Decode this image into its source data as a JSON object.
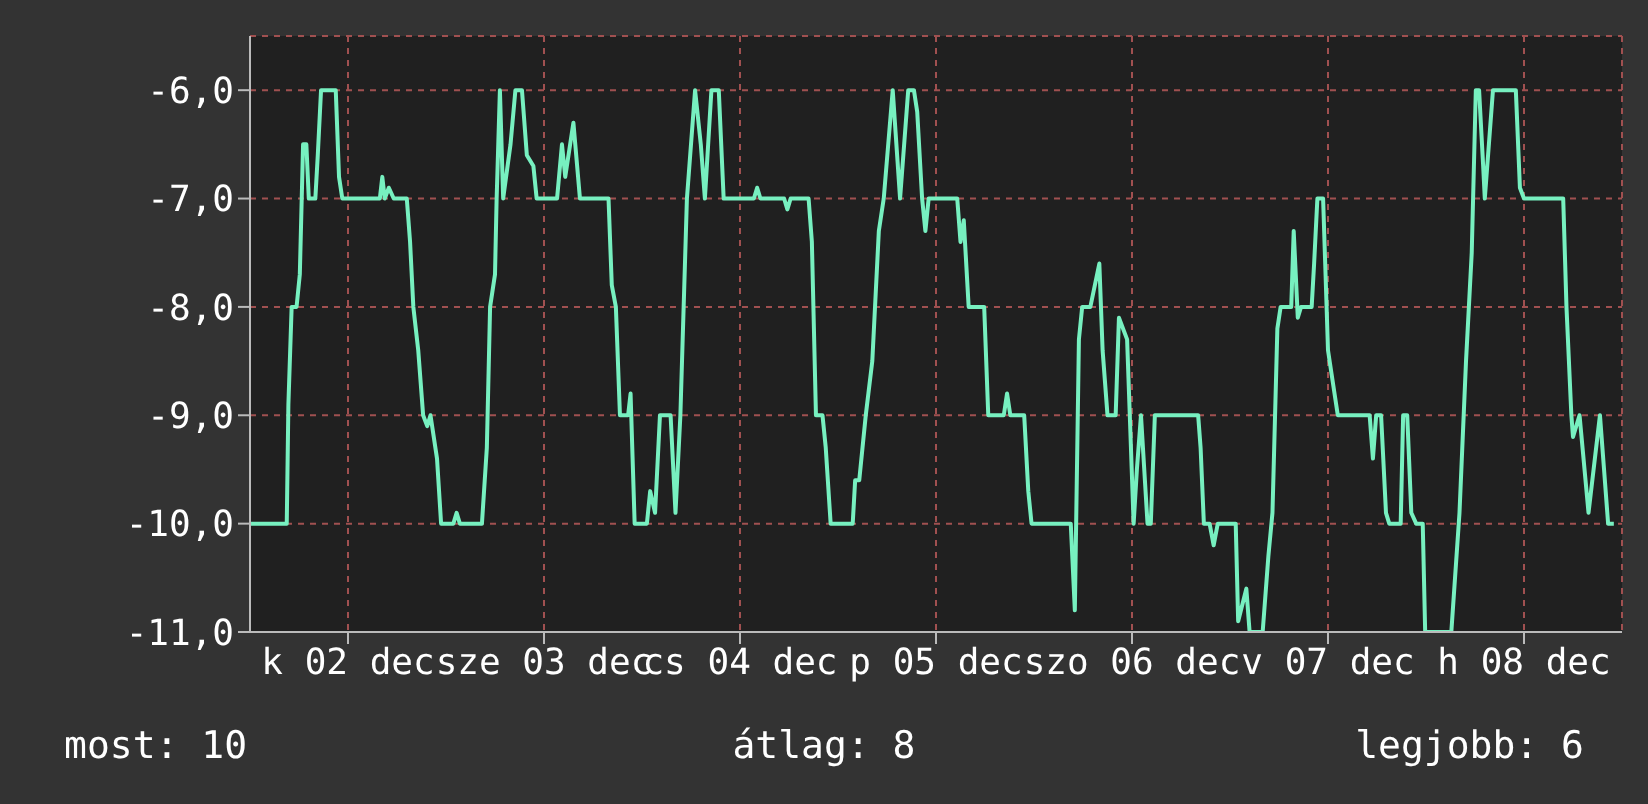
{
  "chart_data": {
    "type": "line",
    "xlim": [
      "--12-02",
      "--12-09"
    ],
    "xticks": [
      {
        "value": "--12-02T12:00",
        "label": "k 02 dec"
      },
      {
        "value": "--12-03T12:00",
        "label": "sze 03 dec"
      },
      {
        "value": "--12-04T12:00",
        "label": "cs 04 dec"
      },
      {
        "value": "--12-05T12:00",
        "label": "p 05 dec"
      },
      {
        "value": "--12-06T12:00",
        "label": "szo 06 dec"
      },
      {
        "value": "--12-07T12:00",
        "label": "v 07 dec"
      },
      {
        "value": "--12-08T12:00",
        "label": "h 08 dec"
      }
    ],
    "ylim": [
      -11,
      -5.5
    ],
    "yticks": [
      {
        "value": -11,
        "label": "-11,0"
      },
      {
        "value": -10,
        "label": "-10,0"
      },
      {
        "value": -9,
        "label": "-9,0"
      },
      {
        "value": -8,
        "label": "-8,0"
      },
      {
        "value": -7,
        "label": "-7,0"
      },
      {
        "value": -6,
        "label": "-6,0"
      }
    ],
    "grid": true,
    "marker": "none",
    "line_style": "solid",
    "annotations": [
      "most: 10",
      "átlag: 8",
      "legjobb: 6"
    ],
    "series": [
      {
        "color": "#77f0c0",
        "x": [
          "--12-02T00:00",
          "--12-02T04:30",
          "--12-02T04:42",
          "--12-02T05:06",
          "--12-02T05:42",
          "--12-02T06:06",
          "--12-02T06:30",
          "--12-02T06:54",
          "--12-02T07:12",
          "--12-02T08:00",
          "--12-02T08:18",
          "--12-02T08:42",
          "--12-02T10:30",
          "--12-02T10:54",
          "--12-02T11:18",
          "--12-02T15:54",
          "--12-02T16:12",
          "--12-02T16:30",
          "--12-02T17:00",
          "--12-02T17:36",
          "--12-02T19:12",
          "--12-02T19:36",
          "--12-02T20:00",
          "--12-02T20:36",
          "--12-02T21:12",
          "--12-02T21:42",
          "--12-02T22:06",
          "--12-02T22:54",
          "--12-02T23:24",
          "--12-03T00:54",
          "--12-03T01:18",
          "--12-03T01:42",
          "--12-03T04:24",
          "--12-03T05:00",
          "--12-03T05:24",
          "--12-03T06:00",
          "--12-03T06:12",
          "--12-03T06:36",
          "--12-03T07:00",
          "--12-03T07:54",
          "--12-03T08:30",
          "--12-03T09:18",
          "--12-03T09:54",
          "--12-03T10:42",
          "--12-03T11:06",
          "--12-03T13:36",
          "--12-03T14:12",
          "--12-03T14:36",
          "--12-03T15:36",
          "--12-03T16:24",
          "--12-03T19:54",
          "--12-03T20:18",
          "--12-03T20:48",
          "--12-03T21:18",
          "--12-03T22:18",
          "--12-03T22:36",
          "--12-03T23:06",
          "--12-04T00:36",
          "--12-04T01:00",
          "--12-04T01:36",
          "--12-04T02:12",
          "--12-04T03:30",
          "--12-04T04:06",
          "--12-04T04:42",
          "--12-04T05:06",
          "--12-04T05:30",
          "--12-04T06:30",
          "--12-04T07:12",
          "--12-04T07:42",
          "--12-04T08:30",
          "--12-04T09:24",
          "--12-04T10:00",
          "--12-04T13:42",
          "--12-04T14:06",
          "--12-04T14:30",
          "--12-04T17:24",
          "--12-04T17:48",
          "--12-04T18:12",
          "--12-04T20:24",
          "--12-04T20:48",
          "--12-04T21:18",
          "--12-04T22:06",
          "--12-04T22:30",
          "--12-04T23:06",
          "--12-05T01:48",
          "--12-05T02:06",
          "--12-05T02:36",
          "--12-05T03:24",
          "--12-05T04:12",
          "--12-05T05:00",
          "--12-05T05:36",
          "--12-05T06:42",
          "--12-05T07:36",
          "--12-05T08:36",
          "--12-05T09:18",
          "--12-05T09:42",
          "--12-05T10:18",
          "--12-05T10:42",
          "--12-05T11:06",
          "--12-05T14:36",
          "--12-05T15:00",
          "--12-05T15:24",
          "--12-05T16:00",
          "--12-05T17:54",
          "--12-05T18:06",
          "--12-05T18:24",
          "--12-05T20:18",
          "--12-05T20:42",
          "--12-05T21:06",
          "--12-05T22:48",
          "--12-05T23:18",
          "--12-05T23:42",
          "--12-06T04:30",
          "--12-06T05:00",
          "--12-06T05:30",
          "--12-06T05:54",
          "--12-06T06:54",
          "--12-06T08:00",
          "--12-06T08:24",
          "--12-06T09:00",
          "--12-06T10:00",
          "--12-06T10:24",
          "--12-06T11:24",
          "--12-06T12:12",
          "--12-06T12:36",
          "--12-06T13:06",
          "--12-06T13:54",
          "--12-06T14:18",
          "--12-06T14:48",
          "--12-06T15:48",
          "--12-06T20:06",
          "--12-06T20:24",
          "--12-06T20:48",
          "--12-06T21:30",
          "--12-06T22:00",
          "--12-06T22:30",
          "--12-07T00:42",
          "--12-07T01:00",
          "--12-07T02:00",
          "--12-07T02:24",
          "--12-07T04:00",
          "--12-07T04:42",
          "--12-07T05:12",
          "--12-07T05:48",
          "--12-07T06:12",
          "--12-07T07:30",
          "--12-07T07:48",
          "--12-07T08:18",
          "--12-07T08:42",
          "--12-07T10:00",
          "--12-07T10:18",
          "--12-07T10:42",
          "--12-07T11:24",
          "--12-07T12:00",
          "--12-07T12:24",
          "--12-07T13:12",
          "--12-07T17:06",
          "--12-07T17:30",
          "--12-07T17:54",
          "--12-07T18:30",
          "--12-07T19:06",
          "--12-07T19:30",
          "--12-07T20:54",
          "--12-07T21:12",
          "--12-07T21:42",
          "--12-07T22:12",
          "--12-07T22:48",
          "--12-07T23:36",
          "--12-07T23:54",
          "--12-08T03:06",
          "--12-08T04:06",
          "--12-08T04:54",
          "--12-08T05:36",
          "--12-08T06:06",
          "--12-08T06:30",
          "--12-08T07:00",
          "--12-08T07:12",
          "--12-08T08:12",
          "--12-08T11:00",
          "--12-08T11:30",
          "--12-08T12:00",
          "--12-08T16:48",
          "--12-08T17:12",
          "--12-08T17:48",
          "--12-08T18:00",
          "--12-08T18:48",
          "--12-08T19:54",
          "--12-08T21:18",
          "--12-08T21:48",
          "--12-08T22:18",
          "--12-08T23:00"
        ],
        "values": [
          -10,
          -10,
          -8.9,
          -8,
          -8,
          -7.7,
          -6.5,
          -6.5,
          -7,
          -7,
          -6.6,
          -6,
          -6,
          -6.8,
          -7,
          -7,
          -6.8,
          -7,
          -6.9,
          -7,
          -7,
          -7.4,
          -8,
          -8.4,
          -9,
          -9.1,
          -9,
          -9.4,
          -10,
          -10,
          -9.9,
          -10,
          -10,
          -9.3,
          -8,
          -7.7,
          -7,
          -6,
          -7,
          -6.5,
          -6,
          -6,
          -6.6,
          -6.7,
          -7,
          -7,
          -6.5,
          -6.8,
          -6.3,
          -7,
          -7,
          -7.8,
          -8,
          -9,
          -9,
          -8.8,
          -10,
          -10,
          -9.7,
          -9.9,
          -9,
          -9,
          -9.9,
          -9,
          -8,
          -7,
          -6,
          -6.5,
          -7,
          -6,
          -6,
          -7,
          -7,
          -6.9,
          -7,
          -7,
          -7.1,
          -7,
          -7,
          -7.4,
          -9,
          -9,
          -9.3,
          -10,
          -10,
          -9.6,
          -9.6,
          -9,
          -8.5,
          -7.3,
          -7,
          -6,
          -7,
          -6,
          -6,
          -6.2,
          -7,
          -7.3,
          -7,
          -7,
          -7.4,
          -7.2,
          -8,
          -8,
          -8.4,
          -9,
          -9,
          -8.8,
          -9,
          -9,
          -9.7,
          -10,
          -10,
          -10.8,
          -8.3,
          -8,
          -8,
          -7.6,
          -8.4,
          -9,
          -9,
          -8.1,
          -8.3,
          -10,
          -9.5,
          -9,
          -10,
          -10,
          -9,
          -9,
          -9,
          -9.3,
          -10,
          -10,
          -10.2,
          -10,
          -10,
          -10.9,
          -10.6,
          -11,
          -11,
          -10.3,
          -9.9,
          -8.2,
          -8,
          -8,
          -7.3,
          -8.1,
          -8,
          -8,
          -7.6,
          -7,
          -7,
          -8.4,
          -8.6,
          -9,
          -9,
          -9.4,
          -9,
          -9,
          -9.9,
          -10,
          -10,
          -9,
          -9,
          -9.9,
          -10,
          -10,
          -11,
          -11,
          -9.9,
          -8.5,
          -7.5,
          -6,
          -6,
          -6.7,
          -7,
          -6,
          -6,
          -6.9,
          -7,
          -7,
          -8,
          -9,
          -9.2,
          -9,
          -9.9,
          -9,
          -9.5,
          -10,
          -10
        ]
      }
    ]
  }
}
